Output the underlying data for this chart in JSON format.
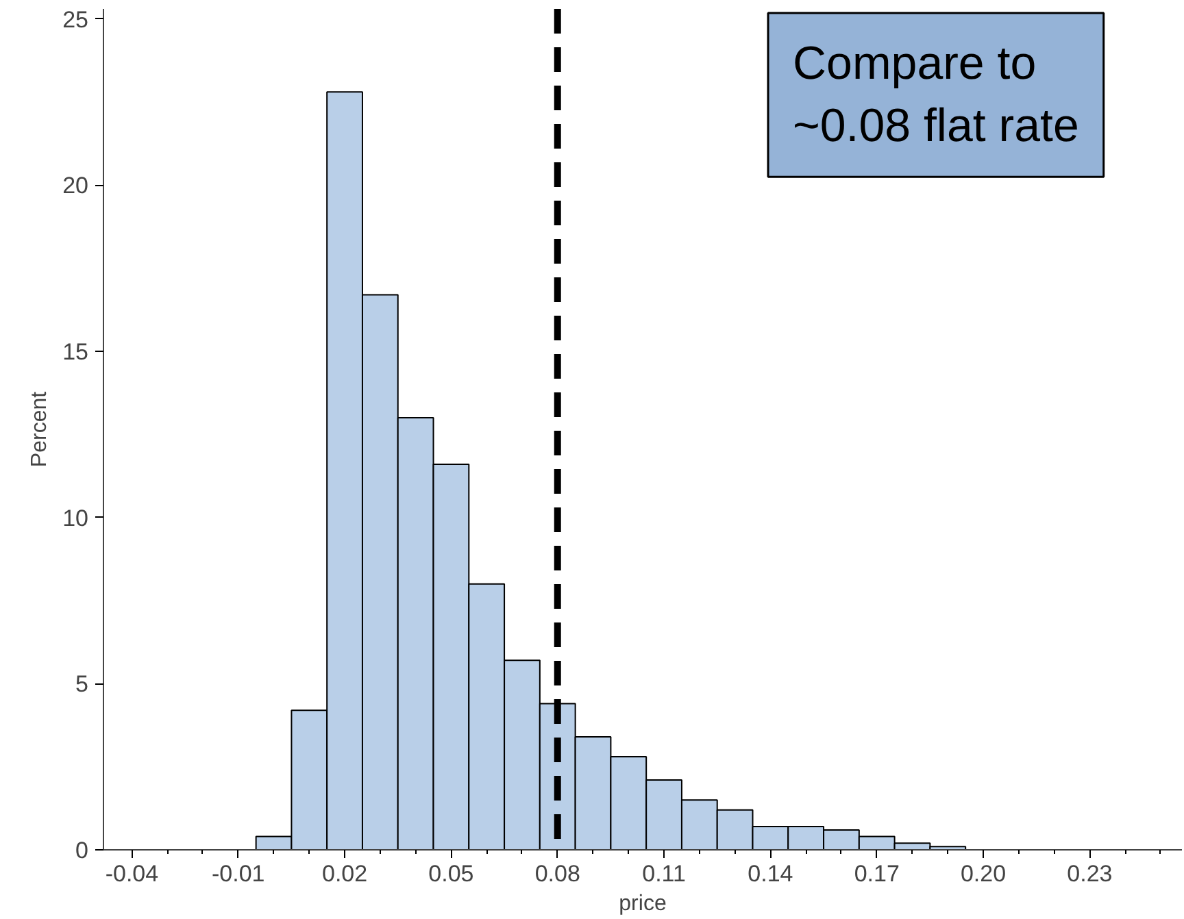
{
  "chart_data": {
    "type": "histogram",
    "xlabel": "price",
    "ylabel": "Percent",
    "bins": [
      -0.005,
      0.005,
      0.015,
      0.025,
      0.035,
      0.045,
      0.055,
      0.065,
      0.075,
      0.085,
      0.095,
      0.105,
      0.115,
      0.125,
      0.135,
      0.145,
      0.155,
      0.165,
      0.175,
      0.185,
      0.195
    ],
    "values": [
      0.4,
      4.2,
      22.8,
      16.7,
      13.0,
      11.6,
      8.0,
      5.7,
      4.4,
      3.4,
      2.8,
      2.1,
      1.5,
      1.2,
      0.7,
      0.7,
      0.6,
      0.4,
      0.2,
      0.1
    ],
    "color": "#b9cfe8",
    "xlim": [
      -0.048,
      0.256
    ],
    "xticks": [
      {
        "value": -0.04,
        "label": "-0.04"
      },
      {
        "value": -0.01,
        "label": "-0.01"
      },
      {
        "value": 0.02,
        "label": "0.02"
      },
      {
        "value": 0.05,
        "label": "0.05"
      },
      {
        "value": 0.08,
        "label": "0.08"
      },
      {
        "value": 0.11,
        "label": "0.11"
      },
      {
        "value": 0.14,
        "label": "0.14"
      },
      {
        "value": 0.17,
        "label": "0.17"
      },
      {
        "value": 0.2,
        "label": "0.20"
      },
      {
        "value": 0.23,
        "label": "0.23"
      }
    ],
    "ylim": [
      0,
      25.3
    ],
    "yticks": [
      0,
      5,
      10,
      15,
      20,
      25
    ],
    "ref_lines": [
      {
        "axis": "x",
        "value": 0.08,
        "color": "#000000",
        "line_style": "dashed"
      }
    ],
    "annotations": [
      "Compare to\n~0.08 flat rate"
    ],
    "grid": false
  }
}
